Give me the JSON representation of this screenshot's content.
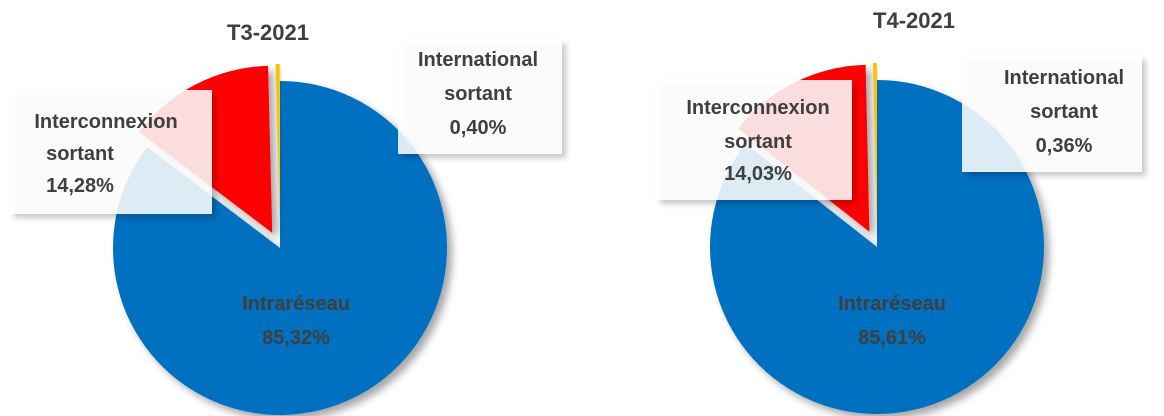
{
  "colors": {
    "intrareseau": "#0070c0",
    "interconnexion": "#ff0000",
    "international": "#ffc000",
    "label_text": "#3f3f3f"
  },
  "chart_data": [
    {
      "type": "pie",
      "title": "T3-2021",
      "slices": [
        {
          "name": "Intraréseau",
          "value": 85.32,
          "display": "85,32%",
          "exploded": false
        },
        {
          "name": "Interconnexion sortant",
          "value": 14.28,
          "display": "14,28%",
          "exploded": true
        },
        {
          "name": "International sortant",
          "value": 0.4,
          "display": "0,40%",
          "exploded": true
        }
      ]
    },
    {
      "type": "pie",
      "title": "T4-2021",
      "slices": [
        {
          "name": "Intraréseau",
          "value": 85.61,
          "display": "85,61%",
          "exploded": false
        },
        {
          "name": "Interconnexion sortant",
          "value": 14.03,
          "display": "14,03%",
          "exploded": true
        },
        {
          "name": "International sortant",
          "value": 0.36,
          "display": "0,36%",
          "exploded": true
        }
      ]
    }
  ]
}
